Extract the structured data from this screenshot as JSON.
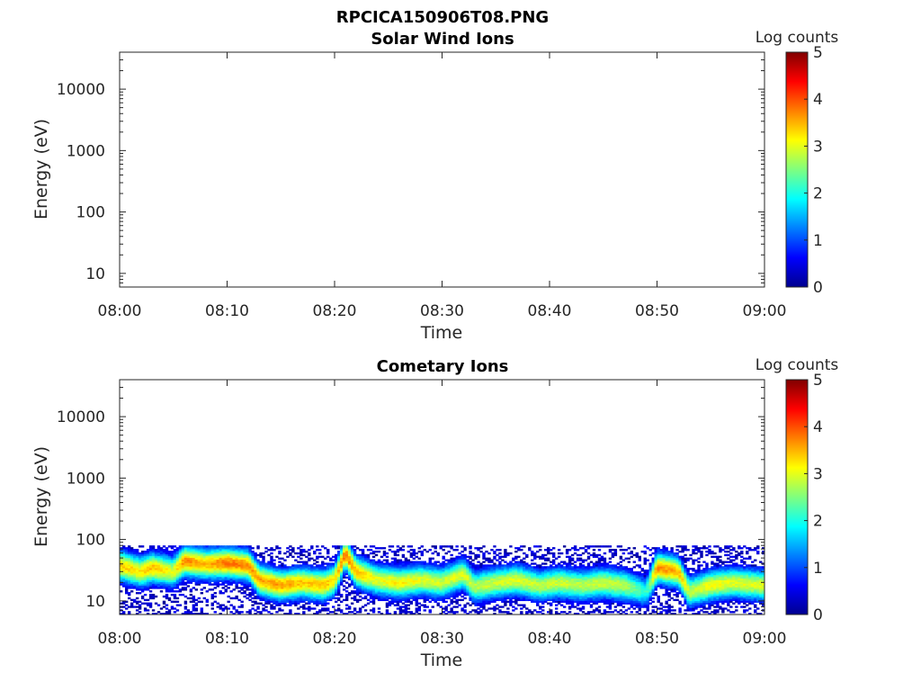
{
  "figure_title": "RPCICA150906T08.PNG",
  "chart_data": [
    {
      "type": "heatmap",
      "title": "Solar Wind Ions",
      "xlabel": "Time",
      "ylabel": "Energy (eV)",
      "x_ticks": [
        "08:00",
        "08:10",
        "08:20",
        "08:30",
        "08:40",
        "08:50",
        "09:00"
      ],
      "xlim": [
        "08:00",
        "09:00"
      ],
      "y_scale": "log",
      "y_ticks": [
        10,
        100,
        1000,
        10000
      ],
      "y_tick_labels": [
        "10",
        "100",
        "1000",
        "10000"
      ],
      "ylim": [
        6,
        40000
      ],
      "colorbar": {
        "label": "Log counts",
        "min": 0,
        "max": 5,
        "ticks": [
          "0",
          "1",
          "2",
          "3",
          "4",
          "5"
        ]
      },
      "band": []
    },
    {
      "type": "heatmap",
      "title": "Cometary Ions",
      "xlabel": "Time",
      "ylabel": "Energy (eV)",
      "x_ticks": [
        "08:00",
        "08:10",
        "08:20",
        "08:30",
        "08:40",
        "08:50",
        "09:00"
      ],
      "xlim": [
        "08:00",
        "09:00"
      ],
      "y_scale": "log",
      "y_ticks": [
        10,
        100,
        1000,
        10000
      ],
      "y_tick_labels": [
        "10",
        "100",
        "1000",
        "10000"
      ],
      "ylim": [
        6,
        40000
      ],
      "colorbar": {
        "label": "Log counts",
        "min": 0,
        "max": 5,
        "ticks": [
          "0",
          "1",
          "2",
          "3",
          "4",
          "5"
        ]
      },
      "max_energy_eV": 80,
      "band": [
        {
          "t": "08:00",
          "energy_eV": 38,
          "log_counts": 3.4
        },
        {
          "t": "08:02",
          "energy_eV": 30,
          "log_counts": 3.2
        },
        {
          "t": "08:03",
          "energy_eV": 35,
          "log_counts": 3.5
        },
        {
          "t": "08:05",
          "energy_eV": 30,
          "log_counts": 3.0
        },
        {
          "t": "08:06",
          "energy_eV": 45,
          "log_counts": 3.7
        },
        {
          "t": "08:08",
          "energy_eV": 40,
          "log_counts": 3.5
        },
        {
          "t": "08:10",
          "energy_eV": 42,
          "log_counts": 3.8
        },
        {
          "t": "08:12",
          "energy_eV": 38,
          "log_counts": 3.7
        },
        {
          "t": "08:13",
          "energy_eV": 22,
          "log_counts": 3.6
        },
        {
          "t": "08:15",
          "energy_eV": 18,
          "log_counts": 3.6
        },
        {
          "t": "08:17",
          "energy_eV": 20,
          "log_counts": 3.4
        },
        {
          "t": "08:19",
          "energy_eV": 18,
          "log_counts": 3.4
        },
        {
          "t": "08:20",
          "energy_eV": 22,
          "log_counts": 3.3
        },
        {
          "t": "08:21",
          "energy_eV": 60,
          "log_counts": 3.8
        },
        {
          "t": "08:22",
          "energy_eV": 30,
          "log_counts": 3.5
        },
        {
          "t": "08:24",
          "energy_eV": 22,
          "log_counts": 3.0
        },
        {
          "t": "08:26",
          "energy_eV": 20,
          "log_counts": 3.2
        },
        {
          "t": "08:28",
          "energy_eV": 22,
          "log_counts": 3.0
        },
        {
          "t": "08:30",
          "energy_eV": 20,
          "log_counts": 2.9
        },
        {
          "t": "08:32",
          "energy_eV": 28,
          "log_counts": 3.0
        },
        {
          "t": "08:33",
          "energy_eV": 17,
          "log_counts": 2.8
        },
        {
          "t": "08:35",
          "energy_eV": 20,
          "log_counts": 2.9
        },
        {
          "t": "08:37",
          "energy_eV": 22,
          "log_counts": 3.0
        },
        {
          "t": "08:39",
          "energy_eV": 18,
          "log_counts": 2.8
        },
        {
          "t": "08:41",
          "energy_eV": 20,
          "log_counts": 2.9
        },
        {
          "t": "08:43",
          "energy_eV": 18,
          "log_counts": 2.8
        },
        {
          "t": "08:45",
          "energy_eV": 20,
          "log_counts": 2.9
        },
        {
          "t": "08:47",
          "energy_eV": 18,
          "log_counts": 2.8
        },
        {
          "t": "08:49",
          "energy_eV": 14,
          "log_counts": 2.0
        },
        {
          "t": "08:50",
          "energy_eV": 35,
          "log_counts": 3.7
        },
        {
          "t": "08:52",
          "energy_eV": 30,
          "log_counts": 3.5
        },
        {
          "t": "08:53",
          "energy_eV": 14,
          "log_counts": 2.8
        },
        {
          "t": "08:55",
          "energy_eV": 18,
          "log_counts": 3.1
        },
        {
          "t": "08:57",
          "energy_eV": 20,
          "log_counts": 3.0
        },
        {
          "t": "09:00",
          "energy_eV": 18,
          "log_counts": 3.0
        }
      ]
    }
  ]
}
